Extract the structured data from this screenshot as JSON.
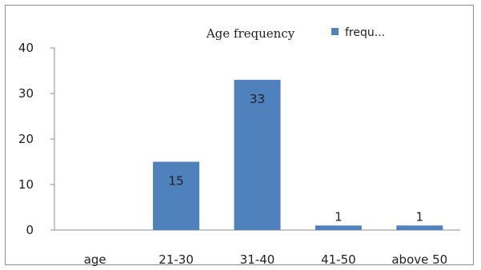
{
  "chart_data": {
    "type": "bar",
    "title": "Age frequency",
    "categories": [
      "age",
      "21-30",
      "31-40",
      "41-50",
      "above 50"
    ],
    "series": [
      {
        "name": "frequ...",
        "values": [
          0,
          15,
          33,
          1,
          1
        ]
      }
    ],
    "data_labels": [
      "",
      "15",
      "33",
      "1",
      "1"
    ],
    "y_ticks": [
      "0",
      "10",
      "20",
      "30",
      "40"
    ],
    "ylim": [
      0,
      40
    ],
    "grid": false,
    "legend_position": "top-right",
    "colors": {
      "bar": "#4f81bd",
      "axis": "#8c8c8c",
      "text": "#1f1f1f"
    }
  }
}
